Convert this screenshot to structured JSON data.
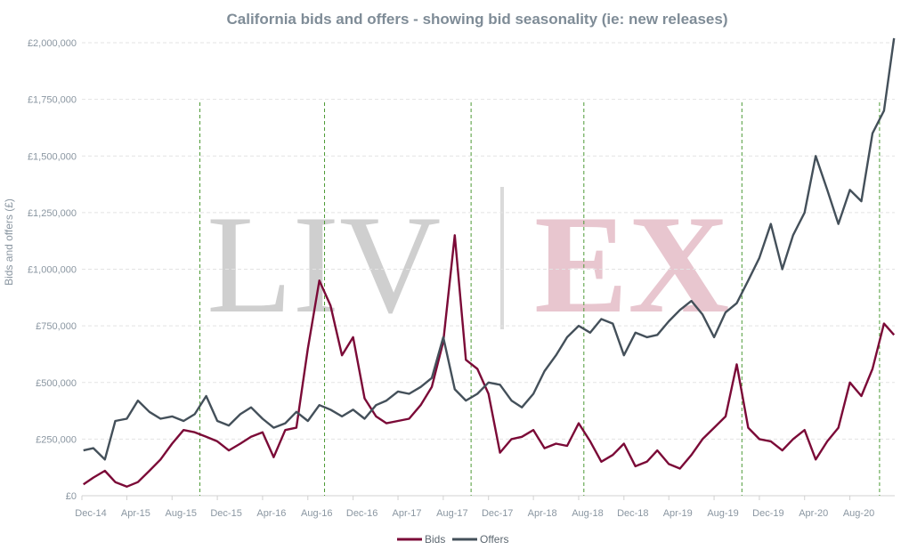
{
  "chart_data": {
    "type": "line",
    "title": "California bids and offers - showing bid seasonality (ie: new releases)",
    "xlabel": "",
    "ylabel": "Bids and offers (£)",
    "ylim": [
      0,
      2000000
    ],
    "yticks": [
      0,
      250000,
      500000,
      750000,
      1000000,
      1250000,
      1500000,
      1750000,
      2000000
    ],
    "ytick_labels": [
      "£0",
      "£250,000",
      "£500,000",
      "£750,000",
      "£1,000,000",
      "£1,250,000",
      "£1,500,000",
      "£1,750,000",
      "£2,000,000"
    ],
    "xlim": [
      "2014-12-01",
      "2020-11-30"
    ],
    "xticks": [
      "2014-12-01",
      "2015-04-01",
      "2015-08-01",
      "2015-12-01",
      "2016-04-01",
      "2016-08-01",
      "2016-12-01",
      "2017-04-01",
      "2017-08-01",
      "2017-12-01",
      "2018-04-01",
      "2018-08-01",
      "2018-12-01",
      "2019-04-01",
      "2019-08-01",
      "2019-12-01",
      "2020-04-01",
      "2020-08-01"
    ],
    "xtick_labels": [
      "Dec-14",
      "Apr-15",
      "Aug-15",
      "Dec-15",
      "Apr-16",
      "Aug-16",
      "Dec-16",
      "Apr-17",
      "Aug-17",
      "Dec-17",
      "Apr-18",
      "Aug-18",
      "Dec-18",
      "Apr-19",
      "Aug-19",
      "Dec-19",
      "Apr-20",
      "Aug-20"
    ],
    "grid": "horizontal dashed",
    "legend": "bottom-center",
    "vertical_markers": [
      "2015-10-15",
      "2016-09-15",
      "2017-10-15",
      "2018-08-15",
      "2019-10-15",
      "2020-10-20"
    ],
    "series": [
      {
        "name": "Bids",
        "color": "#7b0a37",
        "x": [
          "2014-12-05",
          "2015-01-01",
          "2015-02-01",
          "2015-03-01",
          "2015-04-01",
          "2015-05-01",
          "2015-06-01",
          "2015-07-01",
          "2015-08-01",
          "2015-09-01",
          "2015-10-01",
          "2015-11-01",
          "2015-12-01",
          "2016-01-01",
          "2016-02-01",
          "2016-03-01",
          "2016-04-01",
          "2016-05-01",
          "2016-06-01",
          "2016-07-01",
          "2016-08-01",
          "2016-09-01",
          "2016-10-01",
          "2016-11-01",
          "2016-12-01",
          "2017-01-01",
          "2017-02-01",
          "2017-03-01",
          "2017-04-01",
          "2017-05-01",
          "2017-06-01",
          "2017-07-01",
          "2017-08-01",
          "2017-09-01",
          "2017-10-01",
          "2017-11-01",
          "2017-12-01",
          "2018-01-01",
          "2018-02-01",
          "2018-03-01",
          "2018-04-01",
          "2018-05-01",
          "2018-06-01",
          "2018-07-01",
          "2018-08-01",
          "2018-09-01",
          "2018-10-01",
          "2018-11-01",
          "2018-12-01",
          "2019-01-01",
          "2019-02-01",
          "2019-03-01",
          "2019-04-01",
          "2019-05-01",
          "2019-06-01",
          "2019-07-01",
          "2019-08-01",
          "2019-09-01",
          "2019-10-01",
          "2019-11-01",
          "2019-12-01",
          "2020-01-01",
          "2020-02-01",
          "2020-03-01",
          "2020-04-01",
          "2020-05-01",
          "2020-06-01",
          "2020-07-01",
          "2020-08-01",
          "2020-09-01",
          "2020-10-01",
          "2020-11-01",
          "2020-11-28"
        ],
        "values": [
          50000,
          80000,
          110000,
          60000,
          40000,
          60000,
          110000,
          160000,
          230000,
          290000,
          280000,
          260000,
          240000,
          200000,
          230000,
          260000,
          280000,
          170000,
          290000,
          300000,
          650000,
          950000,
          840000,
          620000,
          700000,
          430000,
          350000,
          320000,
          330000,
          340000,
          400000,
          480000,
          680000,
          1150000,
          600000,
          560000,
          450000,
          190000,
          250000,
          260000,
          290000,
          210000,
          230000,
          220000,
          320000,
          240000,
          150000,
          180000,
          230000,
          130000,
          150000,
          200000,
          140000,
          120000,
          180000,
          250000,
          300000,
          350000,
          580000,
          300000,
          250000,
          240000,
          200000,
          250000,
          290000,
          160000,
          240000,
          300000,
          500000,
          440000,
          560000,
          760000,
          710000
        ]
      },
      {
        "name": "Offers",
        "color": "#44505a",
        "x": [
          "2014-12-05",
          "2015-01-01",
          "2015-02-01",
          "2015-03-01",
          "2015-04-01",
          "2015-05-01",
          "2015-06-01",
          "2015-07-01",
          "2015-08-01",
          "2015-09-01",
          "2015-10-01",
          "2015-11-01",
          "2015-12-01",
          "2016-01-01",
          "2016-02-01",
          "2016-03-01",
          "2016-04-01",
          "2016-05-01",
          "2016-06-01",
          "2016-07-01",
          "2016-08-01",
          "2016-09-01",
          "2016-10-01",
          "2016-11-01",
          "2016-12-01",
          "2017-01-01",
          "2017-02-01",
          "2017-03-01",
          "2017-04-01",
          "2017-05-01",
          "2017-06-01",
          "2017-07-01",
          "2017-08-01",
          "2017-09-01",
          "2017-10-01",
          "2017-11-01",
          "2017-12-01",
          "2018-01-01",
          "2018-02-01",
          "2018-03-01",
          "2018-04-01",
          "2018-05-01",
          "2018-06-01",
          "2018-07-01",
          "2018-08-01",
          "2018-09-01",
          "2018-10-01",
          "2018-11-01",
          "2018-12-01",
          "2019-01-01",
          "2019-02-01",
          "2019-03-01",
          "2019-04-01",
          "2019-05-01",
          "2019-06-01",
          "2019-07-01",
          "2019-08-01",
          "2019-09-01",
          "2019-10-01",
          "2019-11-01",
          "2019-12-01",
          "2020-01-01",
          "2020-02-01",
          "2020-03-01",
          "2020-04-01",
          "2020-05-01",
          "2020-06-01",
          "2020-07-01",
          "2020-08-01",
          "2020-09-01",
          "2020-10-01",
          "2020-11-01",
          "2020-11-28"
        ],
        "values": [
          200000,
          210000,
          160000,
          330000,
          340000,
          420000,
          370000,
          340000,
          350000,
          330000,
          360000,
          440000,
          330000,
          310000,
          360000,
          390000,
          340000,
          300000,
          320000,
          370000,
          330000,
          400000,
          380000,
          350000,
          380000,
          340000,
          400000,
          420000,
          460000,
          450000,
          480000,
          520000,
          700000,
          470000,
          420000,
          450000,
          500000,
          490000,
          420000,
          390000,
          450000,
          550000,
          620000,
          700000,
          750000,
          720000,
          780000,
          760000,
          620000,
          720000,
          700000,
          710000,
          770000,
          820000,
          860000,
          800000,
          700000,
          810000,
          850000,
          950000,
          1050000,
          1200000,
          1000000,
          1150000,
          1250000,
          1500000,
          1350000,
          1200000,
          1350000,
          1300000,
          1600000,
          1700000,
          2020000
        ]
      }
    ]
  },
  "watermark": {
    "left": "LIV",
    "right": "EX",
    "left_color": "#cfcfcf",
    "right_color": "#e8c6cf"
  },
  "colors": {
    "marker": "#4c9a35",
    "grid": "#e3e3e3",
    "axis": "#d0d0d0"
  }
}
